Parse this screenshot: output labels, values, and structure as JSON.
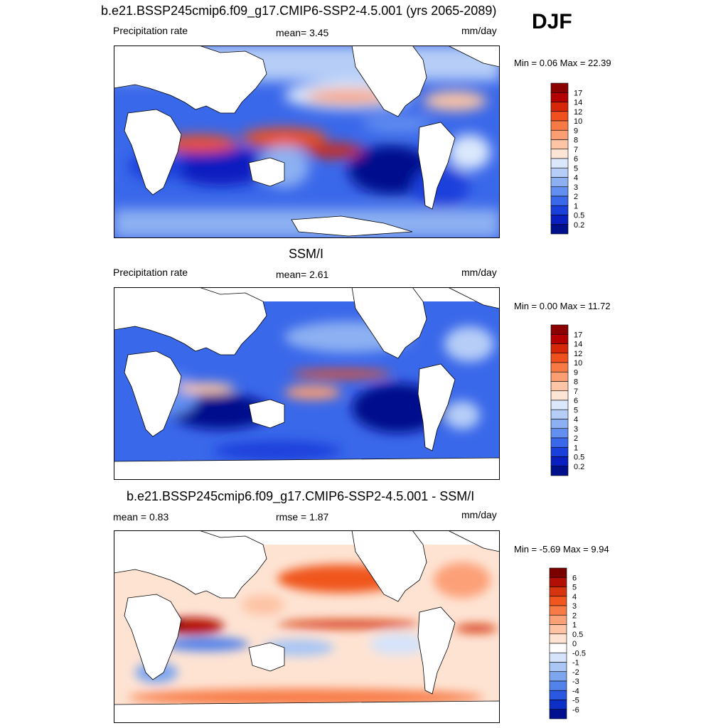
{
  "season": "DJF",
  "chart_data": [
    {
      "type": "heatmap",
      "title": "b.e21.BSSP245cmip6.f09_g17.CMIP6-SSP2-4.5.001 (yrs 2065-2089)",
      "left_label": "Precipitation rate",
      "center_label": "mean=   3.45",
      "units": "mm/day",
      "minmax": "Min =   0.06 Max =  22.39",
      "colorbar_levels": [
        "17",
        "14",
        "12",
        "10",
        "9",
        "8",
        "7",
        "6",
        "5",
        "4",
        "3",
        "2",
        "1",
        "0.5",
        "0.2"
      ],
      "colorbar_colors": [
        "#8b0000",
        "#b40000",
        "#d62808",
        "#f0501e",
        "#f77a45",
        "#fb9e73",
        "#fcc5a5",
        "#fde5d6",
        "#dbe8fb",
        "#b6cdf7",
        "#8db0f2",
        "#628ff0",
        "#3a68ea",
        "#1a40dc",
        "#0a1fc0",
        "#000f8c"
      ]
    },
    {
      "type": "heatmap",
      "title": "SSM/I",
      "left_label": "Precipitation rate",
      "center_label": "mean=   2.61",
      "units": "mm/day",
      "minmax": "Min =   0.00 Max =  11.72",
      "colorbar_levels": [
        "17",
        "14",
        "12",
        "10",
        "9",
        "8",
        "7",
        "6",
        "5",
        "4",
        "3",
        "2",
        "1",
        "0.5",
        "0.2"
      ],
      "colorbar_colors": [
        "#8b0000",
        "#b40000",
        "#d62808",
        "#f0501e",
        "#f77a45",
        "#fb9e73",
        "#fcc5a5",
        "#fde5d6",
        "#dbe8fb",
        "#b6cdf7",
        "#8db0f2",
        "#628ff0",
        "#3a68ea",
        "#1a40dc",
        "#0a1fc0",
        "#000f8c"
      ]
    },
    {
      "type": "heatmap",
      "title": "b.e21.BSSP245cmip6.f09_g17.CMIP6-SSP2-4.5.001 - SSM/I",
      "left_label": "mean =   0.83",
      "center_label": "rmse =   1.87",
      "units": "mm/day",
      "minmax": "Min =  -5.69 Max =   9.94",
      "colorbar_levels": [
        "6",
        "5",
        "4",
        "3",
        "2",
        "1",
        "0.5",
        "0",
        "-0.5",
        "-1",
        "-2",
        "-3",
        "-4",
        "-5",
        "-6"
      ],
      "colorbar_colors": [
        "#7a0000",
        "#b21004",
        "#d63510",
        "#f0561e",
        "#f87b46",
        "#fca078",
        "#fdc3a4",
        "#fee3d3",
        "#ffffff",
        "#d5e3fb",
        "#a9c6f5",
        "#7ea6ef",
        "#5282ea",
        "#2a58e0",
        "#0c2fc8",
        "#00108f"
      ]
    }
  ]
}
